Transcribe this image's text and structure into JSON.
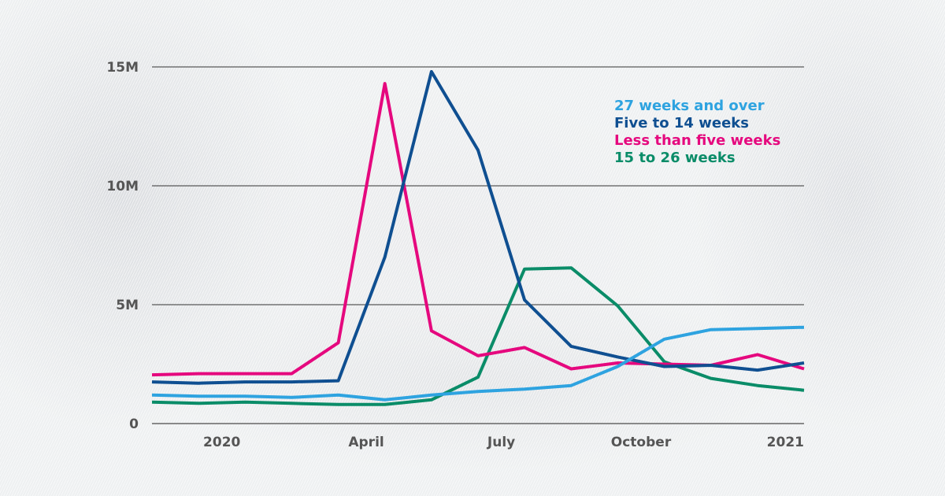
{
  "chart_data": {
    "type": "line",
    "title": "",
    "xlabel": "",
    "ylabel": "",
    "ylim": [
      0,
      15
    ],
    "y_ticks": [
      {
        "value": 0,
        "label": "0"
      },
      {
        "value": 5,
        "label": "5M"
      },
      {
        "value": 10,
        "label": "10M"
      },
      {
        "value": 15,
        "label": "15M"
      }
    ],
    "x_ticks": [
      {
        "index": 1.5,
        "label": "2020"
      },
      {
        "index": 4.6,
        "label": "April"
      },
      {
        "index": 7.5,
        "label": "July"
      },
      {
        "index": 10.5,
        "label": "October"
      },
      {
        "index": 13.6,
        "label": "2021"
      }
    ],
    "x_count": 15,
    "grid": true,
    "legend_position": "top-right",
    "series": [
      {
        "name": "27 weeks and over",
        "color": "#2ea3e0",
        "values": [
          1.2,
          1.15,
          1.15,
          1.1,
          1.2,
          1.0,
          1.2,
          1.35,
          1.45,
          1.6,
          2.4,
          3.55,
          3.95,
          4.0,
          4.05
        ]
      },
      {
        "name": "Five to 14 weeks",
        "color": "#0f4f91",
        "values": [
          1.75,
          1.7,
          1.75,
          1.75,
          1.8,
          7.0,
          14.8,
          11.5,
          5.2,
          3.25,
          2.8,
          2.4,
          2.45,
          2.25,
          2.55
        ]
      },
      {
        "name": "Less than five weeks",
        "color": "#e5087e",
        "values": [
          2.05,
          2.1,
          2.1,
          2.1,
          3.4,
          14.3,
          3.9,
          2.85,
          3.2,
          2.3,
          2.55,
          2.5,
          2.45,
          2.9,
          2.3
        ]
      },
      {
        "name": "15 to 26 weeks",
        "color": "#0a8c68",
        "values": [
          0.9,
          0.85,
          0.9,
          0.85,
          0.8,
          0.8,
          1.0,
          1.95,
          6.5,
          6.55,
          4.95,
          2.6,
          1.9,
          1.6,
          1.4
        ]
      }
    ]
  }
}
